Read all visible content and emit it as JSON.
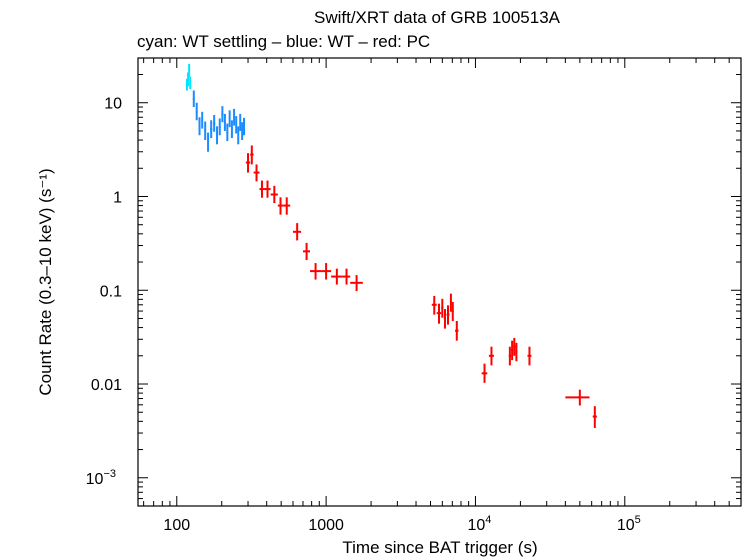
{
  "chart_data": {
    "type": "scatter",
    "title": "Swift/XRT data of GRB 100513A",
    "subtitle": "cyan: WT settling – blue: WT – red: PC",
    "xlabel": "Time since BAT trigger (s)",
    "ylabel": "Count Rate (0.3–10 keV) (s⁻¹)",
    "x_scale": "log",
    "y_scale": "log",
    "xlim": [
      55,
      600000
    ],
    "ylim": [
      0.0005,
      30
    ],
    "x_tick_labels": [
      {
        "value": 100,
        "base": "100",
        "exp": ""
      },
      {
        "value": 1000,
        "base": "1000",
        "exp": ""
      },
      {
        "value": 10000,
        "base": "10",
        "exp": "4"
      },
      {
        "value": 100000,
        "base": "10",
        "exp": "5"
      }
    ],
    "y_tick_labels": [
      {
        "value": 10,
        "base": "10",
        "exp": ""
      },
      {
        "value": 1,
        "base": "1",
        "exp": ""
      },
      {
        "value": 0.1,
        "base": "0.1",
        "exp": ""
      },
      {
        "value": 0.01,
        "base": "0.01",
        "exp": ""
      },
      {
        "value": 0.001,
        "base": "10",
        "exp": "−3"
      }
    ],
    "grid": false,
    "series": [
      {
        "color": "#00e5ff",
        "points": [
          {
            "x": 117,
            "y": 15.5,
            "xlo": 116,
            "xhi": 118,
            "ylo": 13.5,
            "yhi": 18
          },
          {
            "x": 119,
            "y": 17.5,
            "xlo": 118,
            "xhi": 120,
            "ylo": 15,
            "yhi": 21
          },
          {
            "x": 121,
            "y": 22,
            "xlo": 120,
            "xhi": 122,
            "ylo": 19,
            "yhi": 26
          },
          {
            "x": 123,
            "y": 16,
            "xlo": 122,
            "xhi": 124,
            "ylo": 14,
            "yhi": 19
          }
        ]
      },
      {
        "color": "#1a8cff",
        "points": [
          {
            "x": 130,
            "y": 11,
            "xlo": 128,
            "xhi": 132,
            "ylo": 9,
            "yhi": 13.5
          },
          {
            "x": 136,
            "y": 8,
            "xlo": 134,
            "xhi": 138,
            "ylo": 6.5,
            "yhi": 10
          },
          {
            "x": 142,
            "y": 5.5,
            "xlo": 140,
            "xhi": 144,
            "ylo": 4.5,
            "yhi": 7
          },
          {
            "x": 148,
            "y": 6.5,
            "xlo": 146,
            "xhi": 150,
            "ylo": 5.3,
            "yhi": 8
          },
          {
            "x": 155,
            "y": 5,
            "xlo": 153,
            "xhi": 157,
            "ylo": 4,
            "yhi": 6.3
          },
          {
            "x": 162,
            "y": 3.8,
            "xlo": 160,
            "xhi": 164,
            "ylo": 3,
            "yhi": 4.8
          },
          {
            "x": 170,
            "y": 5.2,
            "xlo": 167,
            "xhi": 173,
            "ylo": 4.2,
            "yhi": 6.5
          },
          {
            "x": 178,
            "y": 6,
            "xlo": 175,
            "xhi": 181,
            "ylo": 4.9,
            "yhi": 7.4
          },
          {
            "x": 186,
            "y": 4.5,
            "xlo": 183,
            "xhi": 189,
            "ylo": 3.6,
            "yhi": 5.6
          },
          {
            "x": 194,
            "y": 5.5,
            "xlo": 191,
            "xhi": 197,
            "ylo": 4.5,
            "yhi": 6.8
          },
          {
            "x": 202,
            "y": 7.5,
            "xlo": 199,
            "xhi": 205,
            "ylo": 6.2,
            "yhi": 9.2
          },
          {
            "x": 210,
            "y": 6.2,
            "xlo": 207,
            "xhi": 213,
            "ylo": 5,
            "yhi": 7.6
          },
          {
            "x": 218,
            "y": 4.8,
            "xlo": 215,
            "xhi": 221,
            "ylo": 3.9,
            "yhi": 6
          },
          {
            "x": 226,
            "y": 6.8,
            "xlo": 223,
            "xhi": 229,
            "ylo": 5.5,
            "yhi": 8.3
          },
          {
            "x": 234,
            "y": 5.2,
            "xlo": 231,
            "xhi": 237,
            "ylo": 4.2,
            "yhi": 6.5
          },
          {
            "x": 242,
            "y": 7,
            "xlo": 239,
            "xhi": 245,
            "ylo": 5.7,
            "yhi": 8.6
          },
          {
            "x": 250,
            "y": 5.8,
            "xlo": 247,
            "xhi": 253,
            "ylo": 4.7,
            "yhi": 7.2
          },
          {
            "x": 258,
            "y": 4.5,
            "xlo": 255,
            "xhi": 261,
            "ylo": 3.6,
            "yhi": 5.6
          },
          {
            "x": 266,
            "y": 6.2,
            "xlo": 263,
            "xhi": 269,
            "ylo": 5,
            "yhi": 7.6
          },
          {
            "x": 274,
            "y": 5,
            "xlo": 271,
            "xhi": 277,
            "ylo": 4,
            "yhi": 6.2
          },
          {
            "x": 282,
            "y": 5.6,
            "xlo": 279,
            "xhi": 285,
            "ylo": 4.5,
            "yhi": 6.9
          }
        ]
      },
      {
        "color": "#ff0000",
        "points": [
          {
            "x": 300,
            "y": 2.3,
            "xlo": 290,
            "xhi": 310,
            "ylo": 1.8,
            "yhi": 2.9
          },
          {
            "x": 318,
            "y": 2.8,
            "xlo": 310,
            "xhi": 327,
            "ylo": 2.2,
            "yhi": 3.5
          },
          {
            "x": 342,
            "y": 1.8,
            "xlo": 327,
            "xhi": 358,
            "ylo": 1.45,
            "yhi": 2.2
          },
          {
            "x": 372,
            "y": 1.2,
            "xlo": 358,
            "xhi": 387,
            "ylo": 0.97,
            "yhi": 1.48
          },
          {
            "x": 405,
            "y": 1.2,
            "xlo": 387,
            "xhi": 425,
            "ylo": 0.97,
            "yhi": 1.48
          },
          {
            "x": 450,
            "y": 1.05,
            "xlo": 425,
            "xhi": 475,
            "ylo": 0.85,
            "yhi": 1.3
          },
          {
            "x": 495,
            "y": 0.8,
            "xlo": 475,
            "xhi": 520,
            "ylo": 0.64,
            "yhi": 0.98
          },
          {
            "x": 545,
            "y": 0.8,
            "xlo": 520,
            "xhi": 575,
            "ylo": 0.64,
            "yhi": 0.98
          },
          {
            "x": 640,
            "y": 0.42,
            "xlo": 600,
            "xhi": 680,
            "ylo": 0.34,
            "yhi": 0.52
          },
          {
            "x": 740,
            "y": 0.26,
            "xlo": 700,
            "xhi": 780,
            "ylo": 0.21,
            "yhi": 0.32
          },
          {
            "x": 850,
            "y": 0.16,
            "xlo": 780,
            "xhi": 930,
            "ylo": 0.13,
            "yhi": 0.195
          },
          {
            "x": 1000,
            "y": 0.16,
            "xlo": 930,
            "xhi": 1080,
            "ylo": 0.13,
            "yhi": 0.195
          },
          {
            "x": 1180,
            "y": 0.14,
            "xlo": 1080,
            "xhi": 1290,
            "ylo": 0.115,
            "yhi": 0.17
          },
          {
            "x": 1370,
            "y": 0.14,
            "xlo": 1290,
            "xhi": 1450,
            "ylo": 0.115,
            "yhi": 0.17
          },
          {
            "x": 1600,
            "y": 0.12,
            "xlo": 1450,
            "xhi": 1760,
            "ylo": 0.098,
            "yhi": 0.145
          },
          {
            "x": 5300,
            "y": 0.07,
            "xlo": 5100,
            "xhi": 5500,
            "ylo": 0.055,
            "yhi": 0.087
          },
          {
            "x": 5700,
            "y": 0.057,
            "xlo": 5500,
            "xhi": 5900,
            "ylo": 0.044,
            "yhi": 0.072
          },
          {
            "x": 6000,
            "y": 0.065,
            "xlo": 5900,
            "xhi": 6100,
            "ylo": 0.051,
            "yhi": 0.081
          },
          {
            "x": 6250,
            "y": 0.05,
            "xlo": 6150,
            "xhi": 6350,
            "ylo": 0.039,
            "yhi": 0.063
          },
          {
            "x": 6550,
            "y": 0.055,
            "xlo": 6400,
            "xhi": 6700,
            "ylo": 0.043,
            "yhi": 0.069
          },
          {
            "x": 6850,
            "y": 0.075,
            "xlo": 6750,
            "xhi": 6950,
            "ylo": 0.059,
            "yhi": 0.092
          },
          {
            "x": 7050,
            "y": 0.06,
            "xlo": 6950,
            "xhi": 7150,
            "ylo": 0.047,
            "yhi": 0.075
          },
          {
            "x": 7500,
            "y": 0.037,
            "xlo": 7300,
            "xhi": 7700,
            "ylo": 0.029,
            "yhi": 0.047
          },
          {
            "x": 11500,
            "y": 0.013,
            "xlo": 11000,
            "xhi": 12000,
            "ylo": 0.0103,
            "yhi": 0.0165
          },
          {
            "x": 12800,
            "y": 0.02,
            "xlo": 12300,
            "xhi": 13300,
            "ylo": 0.0158,
            "yhi": 0.025
          },
          {
            "x": 17000,
            "y": 0.02,
            "xlo": 16700,
            "xhi": 17300,
            "ylo": 0.0158,
            "yhi": 0.025
          },
          {
            "x": 17600,
            "y": 0.023,
            "xlo": 17300,
            "xhi": 17900,
            "ylo": 0.018,
            "yhi": 0.029
          },
          {
            "x": 18200,
            "y": 0.025,
            "xlo": 17900,
            "xhi": 18500,
            "ylo": 0.02,
            "yhi": 0.031
          },
          {
            "x": 18800,
            "y": 0.022,
            "xlo": 18500,
            "xhi": 19100,
            "ylo": 0.0175,
            "yhi": 0.0275
          },
          {
            "x": 23000,
            "y": 0.02,
            "xlo": 22300,
            "xhi": 23700,
            "ylo": 0.0158,
            "yhi": 0.025
          },
          {
            "x": 50000,
            "y": 0.0072,
            "xlo": 40000,
            "xhi": 58000,
            "ylo": 0.0059,
            "yhi": 0.0087
          },
          {
            "x": 63000,
            "y": 0.0045,
            "xlo": 61000,
            "xhi": 65000,
            "ylo": 0.0034,
            "yhi": 0.0058
          }
        ]
      }
    ]
  }
}
